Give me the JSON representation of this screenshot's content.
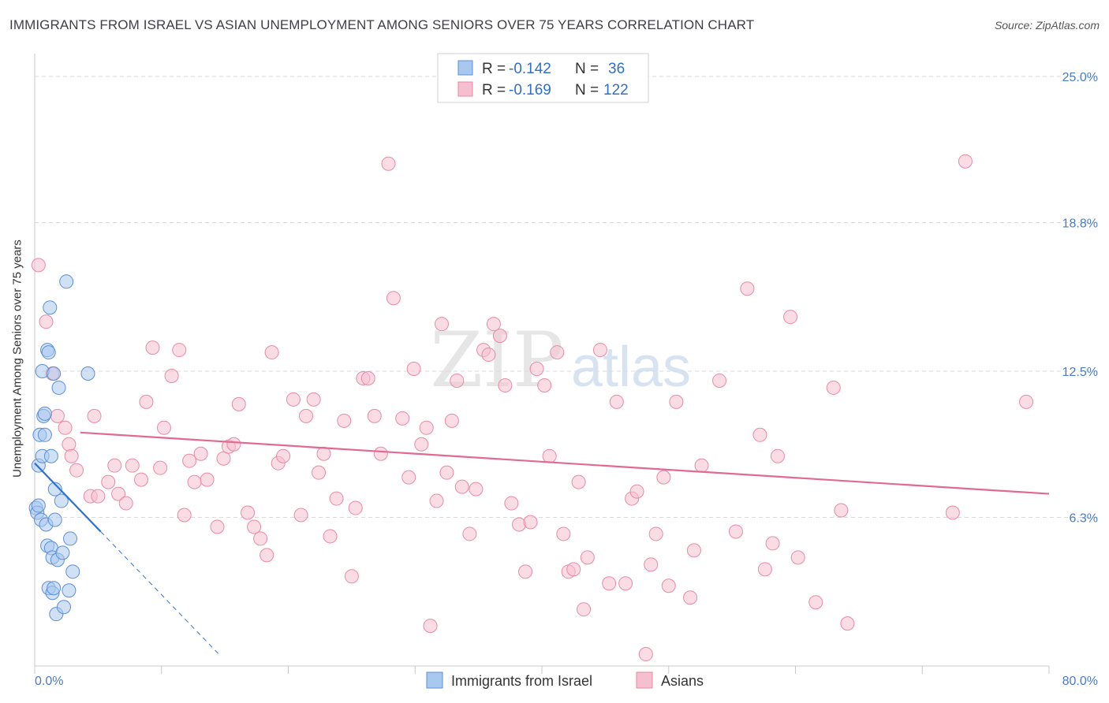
{
  "title": "IMMIGRANTS FROM ISRAEL VS ASIAN UNEMPLOYMENT AMONG SENIORS OVER 75 YEARS CORRELATION CHART",
  "source": "Source: ZipAtlas.com",
  "watermark": {
    "zip": "ZIP",
    "atlas": "atlas"
  },
  "colors": {
    "israel_fill": "#a9c8ef",
    "israel_stroke": "#5b8fd6",
    "israel_line": "#2f72d6",
    "asian_fill": "#f6bfd0",
    "asian_stroke": "#e98aa8",
    "asian_line": "#e06a92",
    "axis_label": "#4a7cc7",
    "grid": "#d9d9d9"
  },
  "legend": {
    "rows": [
      {
        "r_label": "R = ",
        "r_value": "-0.142",
        "n_label": "N = ",
        "n_value": "36"
      },
      {
        "r_label": "R = ",
        "r_value": "-0.169",
        "n_label": "N = ",
        "n_value": "122"
      }
    ]
  },
  "bottom_legend": {
    "israel": "Immigrants from Israel",
    "asian": "Asians"
  },
  "chart_data": {
    "type": "scatter",
    "title": "IMMIGRANTS FROM ISRAEL VS ASIAN UNEMPLOYMENT AMONG SENIORS OVER 75 YEARS CORRELATION CHART",
    "xlabel": "",
    "ylabel": "Unemployment Among Seniors over 75 years",
    "xlim": [
      0,
      80
    ],
    "ylim": [
      0,
      25
    ],
    "x_tick_labels": [
      "0.0%",
      "80.0%"
    ],
    "y_ticks": [
      6.3,
      12.5,
      18.8,
      25.0
    ],
    "y_tick_labels": [
      "6.3%",
      "12.5%",
      "18.8%",
      "25.0%"
    ],
    "grid": true,
    "series": [
      {
        "name": "Immigrants from Israel",
        "R": -0.142,
        "N": 36,
        "trend": {
          "x0": 0,
          "y0": 8.6,
          "x1": 5.2,
          "y1": 5.7,
          "dash_to_x": 14.5
        },
        "points": [
          [
            0.1,
            6.7
          ],
          [
            0.2,
            6.5
          ],
          [
            0.3,
            8.5
          ],
          [
            0.4,
            9.8
          ],
          [
            0.5,
            6.2
          ],
          [
            0.6,
            8.9
          ],
          [
            0.6,
            12.5
          ],
          [
            0.7,
            10.6
          ],
          [
            0.8,
            10.7
          ],
          [
            0.8,
            9.8
          ],
          [
            0.9,
            6.0
          ],
          [
            1.0,
            13.4
          ],
          [
            1.0,
            5.1
          ],
          [
            1.1,
            13.3
          ],
          [
            1.1,
            3.3
          ],
          [
            1.2,
            15.2
          ],
          [
            1.3,
            5.0
          ],
          [
            1.3,
            8.9
          ],
          [
            1.4,
            4.6
          ],
          [
            1.4,
            3.1
          ],
          [
            1.5,
            12.4
          ],
          [
            1.5,
            3.3
          ],
          [
            1.6,
            7.5
          ],
          [
            1.6,
            6.2
          ],
          [
            1.7,
            2.2
          ],
          [
            1.8,
            4.5
          ],
          [
            1.9,
            11.8
          ],
          [
            2.1,
            7.0
          ],
          [
            2.2,
            4.8
          ],
          [
            2.3,
            2.5
          ],
          [
            2.5,
            16.3
          ],
          [
            2.7,
            3.2
          ],
          [
            2.8,
            5.4
          ],
          [
            3.0,
            4.0
          ],
          [
            4.2,
            12.4
          ],
          [
            0.3,
            6.8
          ]
        ]
      },
      {
        "name": "Asians",
        "R": -0.169,
        "N": 122,
        "trend": {
          "x0": 3.6,
          "y0": 9.9,
          "x1": 80,
          "y1": 7.3
        },
        "points": [
          [
            0.3,
            17.0
          ],
          [
            0.9,
            14.6
          ],
          [
            1.4,
            12.4
          ],
          [
            1.8,
            10.6
          ],
          [
            2.4,
            10.1
          ],
          [
            2.7,
            9.4
          ],
          [
            2.9,
            8.9
          ],
          [
            3.3,
            8.3
          ],
          [
            4.4,
            7.2
          ],
          [
            4.7,
            10.6
          ],
          [
            5.0,
            7.2
          ],
          [
            5.8,
            7.8
          ],
          [
            6.3,
            8.5
          ],
          [
            6.6,
            7.3
          ],
          [
            7.2,
            6.9
          ],
          [
            7.7,
            8.5
          ],
          [
            8.4,
            7.9
          ],
          [
            8.8,
            11.2
          ],
          [
            9.3,
            13.5
          ],
          [
            9.9,
            8.4
          ],
          [
            10.2,
            10.1
          ],
          [
            10.8,
            12.3
          ],
          [
            11.4,
            13.4
          ],
          [
            11.8,
            6.4
          ],
          [
            12.2,
            8.7
          ],
          [
            12.6,
            7.8
          ],
          [
            13.1,
            9.0
          ],
          [
            13.6,
            7.9
          ],
          [
            14.4,
            5.9
          ],
          [
            14.9,
            8.8
          ],
          [
            15.3,
            9.3
          ],
          [
            15.7,
            9.4
          ],
          [
            16.1,
            11.1
          ],
          [
            16.8,
            6.5
          ],
          [
            17.3,
            5.9
          ],
          [
            17.8,
            5.4
          ],
          [
            18.3,
            4.7
          ],
          [
            18.7,
            13.3
          ],
          [
            19.2,
            8.6
          ],
          [
            19.6,
            8.9
          ],
          [
            20.4,
            11.3
          ],
          [
            21.0,
            6.4
          ],
          [
            21.4,
            10.6
          ],
          [
            22.0,
            11.3
          ],
          [
            22.4,
            8.2
          ],
          [
            22.8,
            9.0
          ],
          [
            23.3,
            5.5
          ],
          [
            23.8,
            7.1
          ],
          [
            24.4,
            10.4
          ],
          [
            25.0,
            3.8
          ],
          [
            25.3,
            6.7
          ],
          [
            25.9,
            12.2
          ],
          [
            26.3,
            12.2
          ],
          [
            26.8,
            10.6
          ],
          [
            27.3,
            9.0
          ],
          [
            27.9,
            21.3
          ],
          [
            28.3,
            15.6
          ],
          [
            29.0,
            10.5
          ],
          [
            29.5,
            8.0
          ],
          [
            29.9,
            12.6
          ],
          [
            30.5,
            9.4
          ],
          [
            30.9,
            10.1
          ],
          [
            31.2,
            1.7
          ],
          [
            31.7,
            7.0
          ],
          [
            32.1,
            14.5
          ],
          [
            32.5,
            8.2
          ],
          [
            32.9,
            10.4
          ],
          [
            33.3,
            12.1
          ],
          [
            33.7,
            7.6
          ],
          [
            34.3,
            5.6
          ],
          [
            34.8,
            7.5
          ],
          [
            35.4,
            13.4
          ],
          [
            35.8,
            13.2
          ],
          [
            36.2,
            14.5
          ],
          [
            36.7,
            14.0
          ],
          [
            37.1,
            11.9
          ],
          [
            37.6,
            6.9
          ],
          [
            38.2,
            6.0
          ],
          [
            38.7,
            4.0
          ],
          [
            39.1,
            6.1
          ],
          [
            39.6,
            12.6
          ],
          [
            40.2,
            11.9
          ],
          [
            40.6,
            8.9
          ],
          [
            41.2,
            13.3
          ],
          [
            41.7,
            5.6
          ],
          [
            42.1,
            4.0
          ],
          [
            42.5,
            4.1
          ],
          [
            42.9,
            7.8
          ],
          [
            43.3,
            2.4
          ],
          [
            43.6,
            4.6
          ],
          [
            44.6,
            13.4
          ],
          [
            45.3,
            3.5
          ],
          [
            45.9,
            11.2
          ],
          [
            46.6,
            3.5
          ],
          [
            47.1,
            7.1
          ],
          [
            47.5,
            7.4
          ],
          [
            48.2,
            0.5
          ],
          [
            48.6,
            4.3
          ],
          [
            49.0,
            5.6
          ],
          [
            49.6,
            8.0
          ],
          [
            50.0,
            3.4
          ],
          [
            50.6,
            11.2
          ],
          [
            51.7,
            2.9
          ],
          [
            52.0,
            4.9
          ],
          [
            52.6,
            8.5
          ],
          [
            54.0,
            12.1
          ],
          [
            55.3,
            5.7
          ],
          [
            56.2,
            16.0
          ],
          [
            57.2,
            9.8
          ],
          [
            57.6,
            4.1
          ],
          [
            58.2,
            5.2
          ],
          [
            58.6,
            8.9
          ],
          [
            59.6,
            14.8
          ],
          [
            60.2,
            4.6
          ],
          [
            61.6,
            2.7
          ],
          [
            63.0,
            11.8
          ],
          [
            63.6,
            6.6
          ],
          [
            64.1,
            1.8
          ],
          [
            72.4,
            6.5
          ],
          [
            73.4,
            21.4
          ],
          [
            78.2,
            11.2
          ]
        ]
      }
    ]
  }
}
